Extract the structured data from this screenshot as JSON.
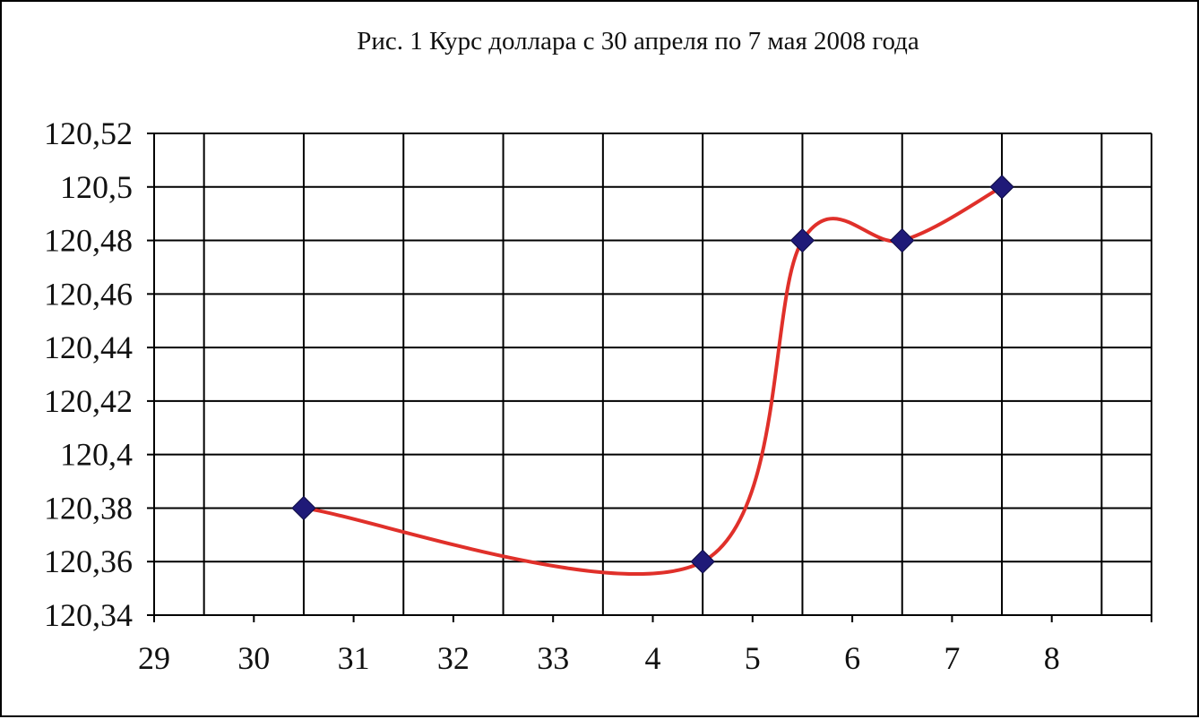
{
  "chart_data": {
    "type": "line",
    "title": "Рис. 1 Курс доллара с 30 апреля по 7 мая 2008 года",
    "x_tick_labels": [
      "29",
      "30",
      "31",
      "32",
      "33",
      "4",
      "5",
      "6",
      "7",
      "8"
    ],
    "y_tick_labels": [
      "120,34",
      "120,36",
      "120,38",
      "120,4",
      "120,42",
      "120,44",
      "120,46",
      "120,48",
      "120,5",
      "120,52"
    ],
    "ylim": [
      120.34,
      120.52
    ],
    "grid": true,
    "series": [
      {
        "x_labels": [
          "30",
          "4",
          "5",
          "6",
          "7"
        ],
        "values": [
          120.38,
          120.36,
          120.48,
          120.48,
          120.5
        ],
        "line_color": "#e0302a",
        "marker_color": "#1f1a78",
        "marker": "diamond"
      }
    ]
  }
}
